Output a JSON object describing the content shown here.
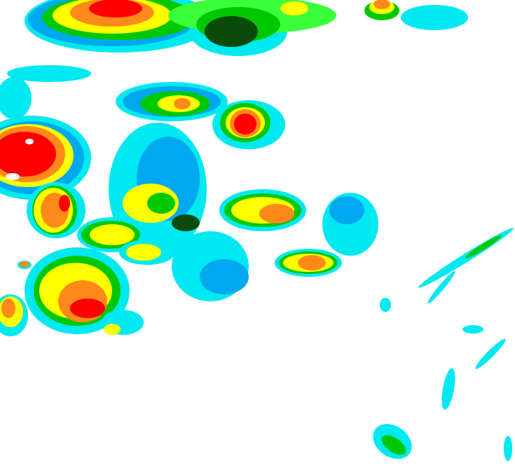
{
  "map": {
    "background": "#ffffff",
    "palette": {
      "cyan": "#00e8f0",
      "light_blue": "#00a8f0",
      "dark_green": "#0a4a0a",
      "green": "#00c800",
      "bright_green": "#3cff3c",
      "yellow": "#ffff00",
      "orange": "#ff8a1a",
      "red": "#ff0000",
      "white": "#ffffff"
    }
  }
}
